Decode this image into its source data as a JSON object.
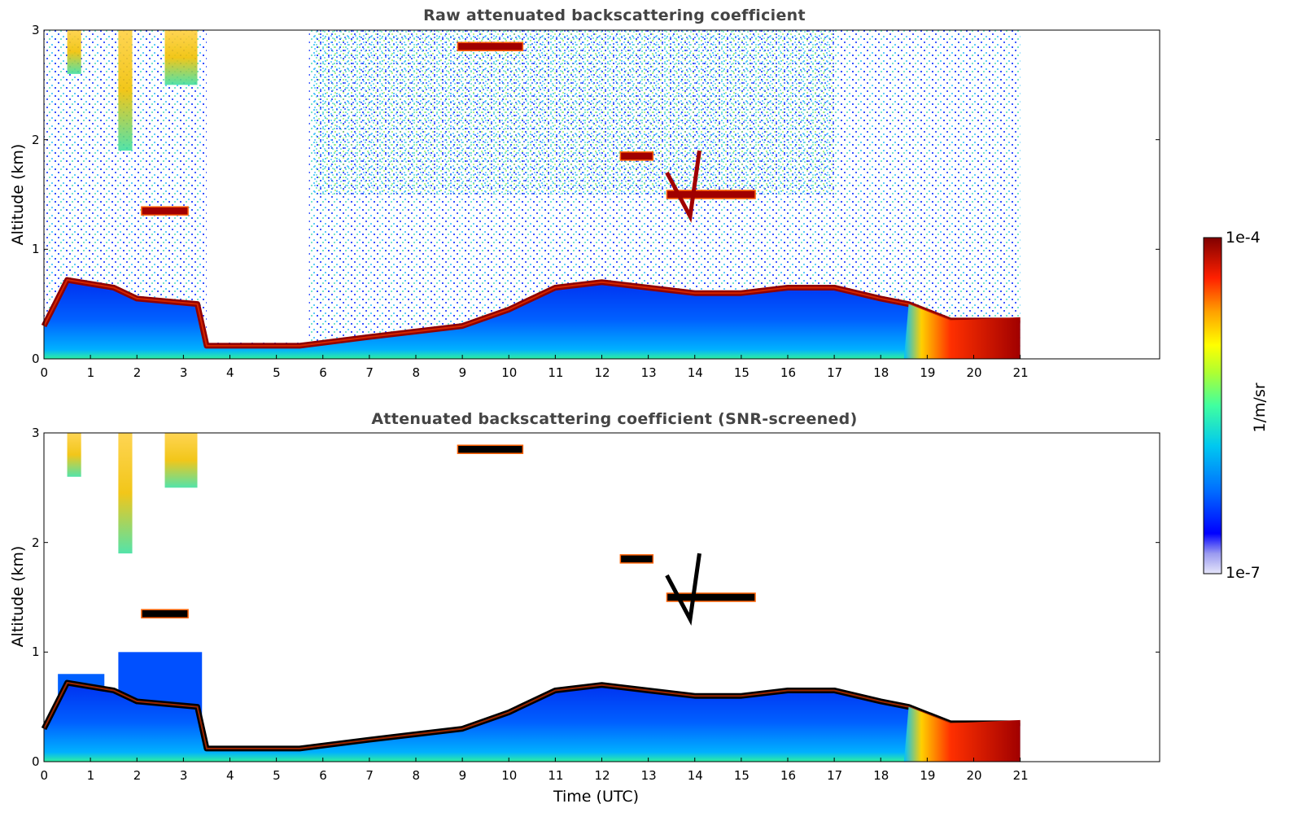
{
  "chart_data": [
    {
      "type": "heatmap",
      "title": "Raw attenuated backscattering coefficient",
      "xlabel": "",
      "ylabel": "Altitude (km)",
      "xlim": [
        0,
        24
      ],
      "ylim": [
        0,
        3
      ],
      "xticks": [
        "0",
        "1",
        "2",
        "3",
        "4",
        "5",
        "6",
        "7",
        "8",
        "9",
        "10",
        "11",
        "12",
        "13",
        "14",
        "15",
        "16",
        "17",
        "18",
        "19",
        "20",
        "21"
      ],
      "yticks": [
        "0",
        "1",
        "2",
        "3"
      ],
      "data_end_hour": 21,
      "boundary_layer_top_km": [
        [
          0,
          0.3
        ],
        [
          0.5,
          0.72
        ],
        [
          1.5,
          0.65
        ],
        [
          2,
          0.55
        ],
        [
          3.3,
          0.5
        ],
        [
          3.5,
          0.12
        ],
        [
          5.5,
          0.12
        ],
        [
          7,
          0.2
        ],
        [
          9,
          0.3
        ],
        [
          10,
          0.45
        ],
        [
          11,
          0.65
        ],
        [
          12,
          0.7
        ],
        [
          13,
          0.65
        ],
        [
          14,
          0.6
        ],
        [
          15,
          0.6
        ],
        [
          16,
          0.65
        ],
        [
          17,
          0.65
        ],
        [
          18,
          0.55
        ],
        [
          18.6,
          0.5
        ],
        [
          19.5,
          0.35
        ],
        [
          21,
          0.35
        ]
      ],
      "elevated_layers": [
        {
          "start": 2.1,
          "end": 3.1,
          "alt_km": 1.35
        },
        {
          "start": 12.4,
          "end": 13.1,
          "alt_km": 1.85
        },
        {
          "start": 13.4,
          "end": 15.3,
          "alt_km": 1.5
        },
        {
          "start": 8.9,
          "end": 10.3,
          "alt_km": 2.85
        }
      ]
    },
    {
      "type": "heatmap",
      "title": "Attenuated backscattering coefficient (SNR-screened)",
      "xlabel": "Time (UTC)",
      "ylabel": "Altitude (km)",
      "xlim": [
        0,
        24
      ],
      "ylim": [
        0,
        3
      ],
      "xticks": [
        "0",
        "1",
        "2",
        "3",
        "4",
        "5",
        "6",
        "7",
        "8",
        "9",
        "10",
        "11",
        "12",
        "13",
        "14",
        "15",
        "16",
        "17",
        "18",
        "19",
        "20",
        "21"
      ],
      "yticks": [
        "0",
        "1",
        "2",
        "3"
      ],
      "data_end_hour": 21
    }
  ],
  "colorbar": {
    "label": "1/m/sr",
    "max_label": "1e-4",
    "min_label": "1e-7",
    "colormap": [
      "#e6e6fa",
      "#b0b0f0",
      "#0000ff",
      "#0050ff",
      "#00a0ff",
      "#00e0e0",
      "#40ff90",
      "#a0ff40",
      "#ffff00",
      "#ffb000",
      "#ff5000",
      "#e00000",
      "#800000"
    ]
  }
}
